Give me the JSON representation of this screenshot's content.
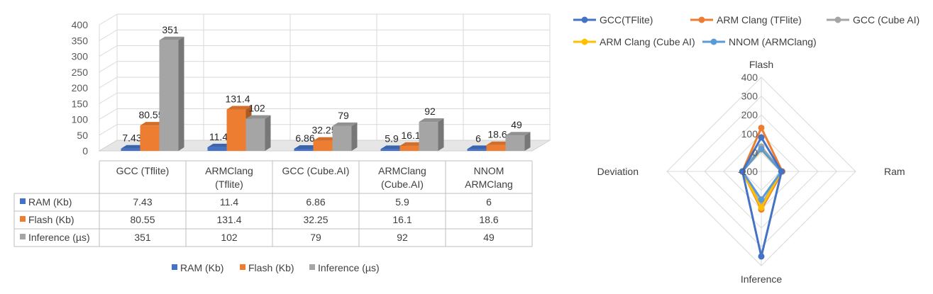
{
  "chart_data": [
    {
      "type": "bar",
      "categories": [
        [
          "GCC (Tflite)"
        ],
        [
          "ARMClang",
          "(Tflite)"
        ],
        [
          "GCC (Cube.AI)"
        ],
        [
          "ARMClang",
          "(Cube.AI)"
        ],
        [
          "NNOM",
          "ARMClang"
        ]
      ],
      "ylim": [
        0,
        400
      ],
      "yticks": [
        "0",
        "50",
        "100",
        "150",
        "200",
        "250",
        "300",
        "350",
        "400"
      ],
      "grid": true,
      "legend_position": "bottom",
      "data_table": true,
      "series": [
        {
          "name": "RAM (Kb)",
          "color": "#4472C4",
          "values": [
            7.43,
            11.4,
            6.86,
            5.9,
            6
          ],
          "labels": [
            "7.43",
            "11.4",
            "6.86",
            "5.9",
            "6"
          ]
        },
        {
          "name": "Flash (Kb)",
          "color": "#ED7D31",
          "values": [
            80.55,
            131.4,
            32.25,
            16.1,
            18.6
          ],
          "labels": [
            "80.55",
            "131.4",
            "32.25",
            "16.1",
            "18.6"
          ]
        },
        {
          "name": "Inference (µs)",
          "color": "#A5A5A5",
          "values": [
            351,
            102,
            79,
            92,
            49
          ],
          "labels": [
            "351",
            "102",
            "79",
            "92",
            "49"
          ]
        }
      ]
    },
    {
      "type": "radar",
      "axes": [
        "Flash",
        "Ram",
        "Inference",
        "Deviation"
      ],
      "rlim": [
        -100,
        400
      ],
      "rticks": [
        "-100",
        "0",
        "100",
        "200",
        "300",
        "400"
      ],
      "legend_position": "top",
      "series": [
        {
          "name": "GCC(TFlite)",
          "color": "#4472C4",
          "values": [
            80.55,
            7.43,
            351,
            0
          ]
        },
        {
          "name": "ARM Clang (TFlite)",
          "color": "#ED7D31",
          "values": [
            131.4,
            11.4,
            102,
            0
          ]
        },
        {
          "name": "GCC (Cube AI)",
          "color": "#A5A5A5",
          "values": [
            32.25,
            6.86,
            79,
            0
          ]
        },
        {
          "name": "ARM Clang (Cube AI)",
          "color": "#FFC000",
          "values": [
            16.1,
            5.9,
            92,
            0
          ]
        },
        {
          "name": "NNOM (ARMClang)",
          "color": "#5B9BD5",
          "values": [
            18.6,
            6,
            49,
            0
          ]
        }
      ]
    }
  ]
}
